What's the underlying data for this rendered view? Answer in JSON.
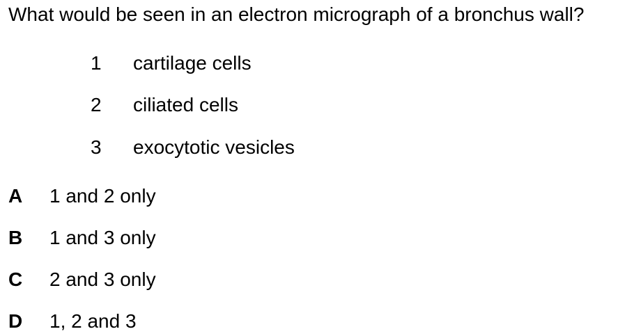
{
  "question": {
    "text": "What would be seen in an electron micrograph of a bronchus wall?"
  },
  "statements": [
    {
      "number": "1",
      "text": "cartilage cells"
    },
    {
      "number": "2",
      "text": "ciliated cells"
    },
    {
      "number": "3",
      "text": "exocytotic vesicles"
    }
  ],
  "options": [
    {
      "letter": "A",
      "text": "1 and 2 only"
    },
    {
      "letter": "B",
      "text": "1 and 3 only"
    },
    {
      "letter": "C",
      "text": "2 and 3 only"
    },
    {
      "letter": "D",
      "text": "1, 2 and 3"
    }
  ]
}
